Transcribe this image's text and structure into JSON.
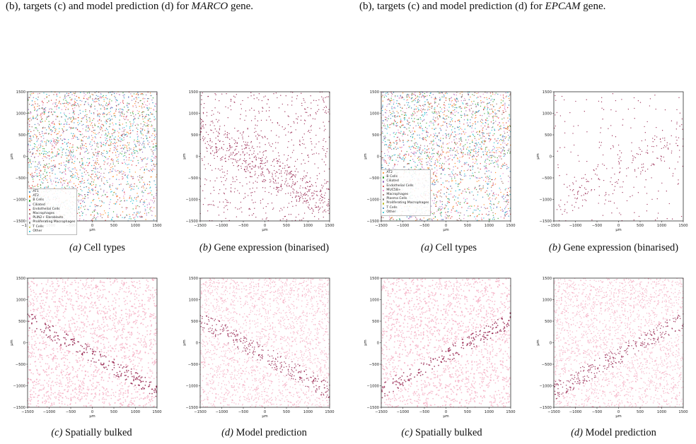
{
  "top_captions": [
    {
      "pre": "(b), targets (c) and model prediction (d) for ",
      "gene": "MARCO",
      "post": " gene."
    },
    {
      "pre": "(b), targets (c) and model prediction (d) for ",
      "gene": "EPCAM",
      "post": " gene."
    }
  ],
  "axis": {
    "x_ticks": [
      "−1500",
      "−1000",
      "−500",
      "0",
      "500",
      "1000",
      "1500"
    ],
    "y_ticks": [
      "1500",
      "1000",
      "500",
      "0",
      "−500",
      "−1000",
      "−1500"
    ],
    "x_unit": "μm",
    "y_unit": "μm",
    "xlim": [
      -1500,
      1500
    ],
    "ylim": [
      -1500,
      1500
    ]
  },
  "subcaptions": {
    "a": {
      "tag": "(a)",
      "text": " Cell types"
    },
    "b": {
      "tag": "(b)",
      "text": " Gene expression (binarised)"
    },
    "c": {
      "tag": "(c)",
      "text": " Spatially bulked"
    },
    "d": {
      "tag": "(d)",
      "text": " Model prediction"
    }
  },
  "legends": {
    "left": [
      {
        "label": "AT1",
        "color": "#1f77b4"
      },
      {
        "label": "AT2",
        "color": "#ff7f0e"
      },
      {
        "label": "B Cells",
        "color": "#2ca02c"
      },
      {
        "label": "Ciliated",
        "color": "#9467bd"
      },
      {
        "label": "Endothelial Cells",
        "color": "#d62728"
      },
      {
        "label": "Macrophages",
        "color": "#8c564b"
      },
      {
        "label": "PLIN2+ Fibroblasts",
        "color": "#e377c2"
      },
      {
        "label": "Proliferating Macrophages",
        "color": "#7f7f7f"
      },
      {
        "label": "T Cells",
        "color": "#bcbd22"
      },
      {
        "label": "Other",
        "color": "#17becf"
      }
    ],
    "right": [
      {
        "label": "AT2",
        "color": "#ff7f0e"
      },
      {
        "label": "B Cells",
        "color": "#2ca02c"
      },
      {
        "label": "Ciliated",
        "color": "#9467bd"
      },
      {
        "label": "Endothelial Cells",
        "color": "#d62728"
      },
      {
        "label": "MUC5B+",
        "color": "#e377c2"
      },
      {
        "label": "Macrophages",
        "color": "#8c564b"
      },
      {
        "label": "Plasma Cells",
        "color": "#7f7f7f"
      },
      {
        "label": "Proliferating Macrophages",
        "color": "#bcbd22"
      },
      {
        "label": "T Cells",
        "color": "#1f77b4"
      },
      {
        "label": "Other",
        "color": "#17becf"
      }
    ]
  },
  "colors": {
    "dark_expression": "#8b0a3a",
    "light_expression": "#f4a8bf",
    "celltype_palette": [
      "#d62728",
      "#ff7f0e",
      "#17becf",
      "#1f77b4",
      "#2ca02c",
      "#9467bd",
      "#e377c2",
      "#8c564b"
    ]
  }
}
